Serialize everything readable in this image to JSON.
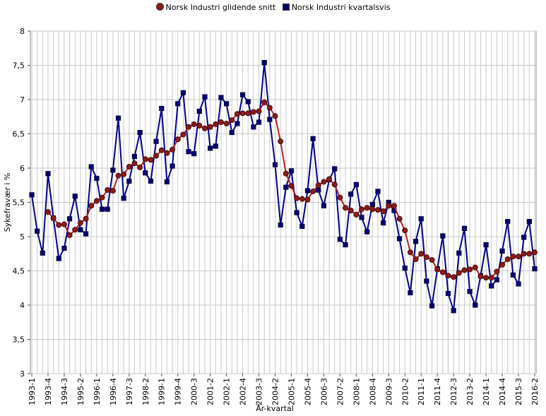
{
  "chart_data": {
    "type": "line",
    "title": "",
    "xlabel": "År-kvartal",
    "ylabel": "Sykefravær i %",
    "ylim": [
      3,
      8
    ],
    "yticks": [
      "3",
      "3,5",
      "4",
      "4,5",
      "5",
      "5,5",
      "6",
      "6,5",
      "7",
      "7,5",
      "8"
    ],
    "grid": true,
    "legend_position": "top-center",
    "x_tick_labels": [
      "1993-1",
      "1993-4",
      "1994-3",
      "1995-2",
      "1996-1",
      "1996-4",
      "1997-3",
      "1998-2",
      "1999-1",
      "1999-4",
      "2000-3",
      "2001-2",
      "2002-1",
      "2002-4",
      "2003-3",
      "2004-2",
      "2005-1",
      "2005-4",
      "2006-3",
      "2007-2",
      "2008-1",
      "2008-4",
      "2009-3",
      "2010-2",
      "2011-1",
      "2011-4",
      "2012-3",
      "2013-2",
      "2014-1",
      "2014-4",
      "2015-3",
      "2016-2"
    ],
    "x": [
      "1993-1",
      "1993-2",
      "1993-3",
      "1993-4",
      "1994-1",
      "1994-2",
      "1994-3",
      "1994-4",
      "1995-1",
      "1995-2",
      "1995-3",
      "1995-4",
      "1996-1",
      "1996-2",
      "1996-3",
      "1996-4",
      "1997-1",
      "1997-2",
      "1997-3",
      "1997-4",
      "1998-1",
      "1998-2",
      "1998-3",
      "1998-4",
      "1999-1",
      "1999-2",
      "1999-3",
      "1999-4",
      "2000-1",
      "2000-2",
      "2000-3",
      "2000-4",
      "2001-1",
      "2001-2",
      "2001-3",
      "2001-4",
      "2002-1",
      "2002-2",
      "2002-3",
      "2002-4",
      "2003-1",
      "2003-2",
      "2003-3",
      "2003-4",
      "2004-1",
      "2004-2",
      "2004-3",
      "2004-4",
      "2005-1",
      "2005-2",
      "2005-3",
      "2005-4",
      "2006-1",
      "2006-2",
      "2006-3",
      "2006-4",
      "2007-1",
      "2007-2",
      "2007-3",
      "2007-4",
      "2008-1",
      "2008-2",
      "2008-3",
      "2008-4",
      "2009-1",
      "2009-2",
      "2009-3",
      "2009-4",
      "2010-1",
      "2010-2",
      "2010-3",
      "2010-4",
      "2011-1",
      "2011-2",
      "2011-3",
      "2011-4",
      "2012-1",
      "2012-2",
      "2012-3",
      "2012-4",
      "2013-1",
      "2013-2",
      "2013-3",
      "2013-4",
      "2014-1",
      "2014-2",
      "2014-3",
      "2014-4",
      "2015-1",
      "2015-2",
      "2015-3",
      "2015-4",
      "2016-1",
      "2016-2"
    ],
    "series": [
      {
        "name": "Norsk Industri glidende snitt",
        "color": "#8b1a1a",
        "line_color": "#b22222",
        "marker": "circle",
        "values": [
          null,
          null,
          null,
          5.36,
          5.27,
          5.17,
          5.18,
          5.02,
          5.1,
          5.2,
          5.26,
          5.45,
          5.52,
          5.57,
          5.68,
          5.67,
          5.89,
          5.91,
          6.02,
          6.07,
          6.01,
          6.13,
          6.12,
          6.18,
          6.26,
          6.22,
          6.27,
          6.42,
          6.49,
          6.6,
          6.64,
          6.62,
          6.58,
          6.6,
          6.64,
          6.67,
          6.65,
          6.7,
          6.79,
          6.8,
          6.8,
          6.82,
          6.83,
          6.96,
          6.88,
          6.76,
          6.39,
          5.92,
          5.74,
          5.56,
          5.55,
          5.54,
          5.66,
          5.75,
          5.8,
          5.84,
          5.76,
          5.57,
          5.42,
          5.38,
          5.32,
          5.4,
          5.42,
          5.4,
          5.39,
          5.37,
          5.45,
          5.45,
          5.26,
          5.09,
          4.77,
          4.67,
          4.75,
          4.7,
          4.66,
          4.52,
          4.48,
          4.43,
          4.41,
          4.47,
          4.51,
          4.52,
          4.55,
          4.42,
          4.4,
          4.4,
          4.49,
          4.59,
          4.67,
          4.71,
          4.71,
          4.75,
          4.75,
          4.77
        ]
      },
      {
        "name": "Norsk Industri kvartalsvis",
        "color": "#00006e",
        "line_color": "#00008b",
        "marker": "square",
        "values": [
          5.61,
          5.08,
          4.76,
          5.92,
          5.27,
          4.68,
          4.83,
          5.26,
          5.59,
          5.1,
          5.04,
          6.02,
          5.85,
          5.4,
          5.4,
          5.97,
          6.73,
          5.56,
          5.81,
          6.17,
          6.52,
          5.93,
          5.81,
          6.39,
          6.87,
          5.8,
          6.03,
          6.94,
          7.1,
          6.24,
          6.21,
          6.83,
          7.04,
          6.29,
          6.32,
          7.03,
          6.94,
          6.52,
          6.65,
          7.07,
          6.97,
          6.6,
          6.67,
          7.54,
          6.71,
          6.05,
          5.17,
          5.72,
          5.96,
          5.35,
          5.15,
          5.67,
          6.43,
          5.68,
          5.45,
          5.83,
          5.99,
          4.96,
          4.88,
          5.62,
          5.76,
          5.28,
          5.07,
          5.47,
          5.66,
          5.2,
          5.5,
          5.38,
          4.97,
          4.54,
          4.18,
          4.93,
          5.26,
          4.35,
          3.99,
          4.53,
          5.01,
          4.17,
          3.92,
          4.76,
          5.12,
          4.2,
          4.0,
          4.43,
          4.88,
          4.28,
          4.37,
          4.79,
          5.22,
          4.44,
          4.31,
          4.99,
          5.22,
          4.53
        ]
      }
    ]
  }
}
